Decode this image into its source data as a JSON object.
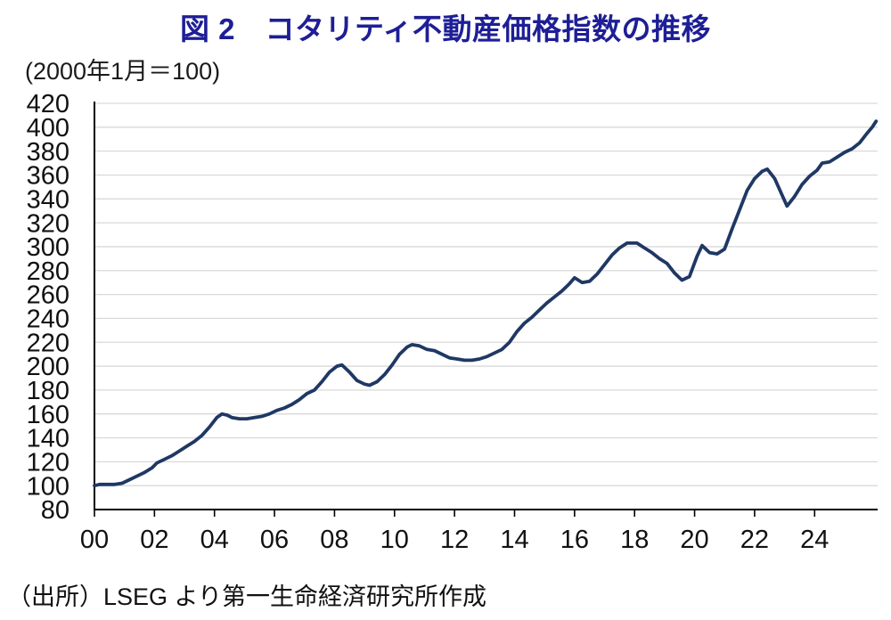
{
  "title": "図 2　コタリティ不動産価格指数の推移",
  "subtitle": "(2000年1月＝100)",
  "source": "（出所）LSEG より第一生命経済研究所作成",
  "colors": {
    "title_text": "#1e1e96",
    "line": "#1f3864",
    "grid": "#d9d9d9",
    "axis": "#000000",
    "tick_text": "#111111"
  },
  "chart_data": {
    "type": "line",
    "title": "図 2　コタリティ不動産価格指数の推移",
    "base_note": "(2000年1月＝100)",
    "xlabel": "",
    "ylabel": "",
    "ylim": [
      80,
      420
    ],
    "ytick_step": 20,
    "xlim": [
      2000,
      2026.1
    ],
    "grid": true,
    "legend": "none",
    "x_tick_years": [
      2000,
      2002,
      2004,
      2006,
      2008,
      2010,
      2012,
      2014,
      2016,
      2018,
      2020,
      2022,
      2024
    ],
    "x_tick_labels": [
      "00",
      "02",
      "04",
      "06",
      "08",
      "10",
      "12",
      "14",
      "16",
      "18",
      "20",
      "22",
      "24"
    ],
    "series": [
      {
        "color": "#1f3864",
        "points": [
          [
            2000.0,
            100
          ],
          [
            2000.17,
            101
          ],
          [
            2000.42,
            101
          ],
          [
            2000.67,
            101
          ],
          [
            2000.92,
            102
          ],
          [
            2001.17,
            105
          ],
          [
            2001.42,
            108
          ],
          [
            2001.67,
            111
          ],
          [
            2001.92,
            115
          ],
          [
            2002.08,
            119
          ],
          [
            2002.33,
            122
          ],
          [
            2002.58,
            125
          ],
          [
            2002.83,
            129
          ],
          [
            2003.08,
            133
          ],
          [
            2003.33,
            137
          ],
          [
            2003.58,
            142
          ],
          [
            2003.83,
            149
          ],
          [
            2004.08,
            157
          ],
          [
            2004.25,
            160
          ],
          [
            2004.42,
            159
          ],
          [
            2004.58,
            157
          ],
          [
            2004.83,
            156
          ],
          [
            2005.08,
            156
          ],
          [
            2005.33,
            157
          ],
          [
            2005.58,
            158
          ],
          [
            2005.83,
            160
          ],
          [
            2006.08,
            163
          ],
          [
            2006.33,
            165
          ],
          [
            2006.58,
            168
          ],
          [
            2006.83,
            172
          ],
          [
            2007.08,
            177
          ],
          [
            2007.33,
            180
          ],
          [
            2007.58,
            187
          ],
          [
            2007.83,
            195
          ],
          [
            2008.08,
            200
          ],
          [
            2008.25,
            201
          ],
          [
            2008.5,
            195
          ],
          [
            2008.75,
            188
          ],
          [
            2009.0,
            185
          ],
          [
            2009.17,
            184
          ],
          [
            2009.42,
            187
          ],
          [
            2009.67,
            193
          ],
          [
            2009.92,
            201
          ],
          [
            2010.17,
            210
          ],
          [
            2010.42,
            216
          ],
          [
            2010.58,
            218
          ],
          [
            2010.83,
            217
          ],
          [
            2011.08,
            214
          ],
          [
            2011.33,
            213
          ],
          [
            2011.58,
            210
          ],
          [
            2011.83,
            207
          ],
          [
            2012.08,
            206
          ],
          [
            2012.33,
            205
          ],
          [
            2012.58,
            205
          ],
          [
            2012.83,
            206
          ],
          [
            2013.08,
            208
          ],
          [
            2013.33,
            211
          ],
          [
            2013.58,
            214
          ],
          [
            2013.83,
            220
          ],
          [
            2014.08,
            229
          ],
          [
            2014.33,
            236
          ],
          [
            2014.58,
            241
          ],
          [
            2014.83,
            247
          ],
          [
            2015.08,
            253
          ],
          [
            2015.33,
            258
          ],
          [
            2015.58,
            263
          ],
          [
            2015.83,
            269
          ],
          [
            2016.0,
            274
          ],
          [
            2016.25,
            270
          ],
          [
            2016.5,
            271
          ],
          [
            2016.75,
            277
          ],
          [
            2017.0,
            285
          ],
          [
            2017.25,
            293
          ],
          [
            2017.5,
            299
          ],
          [
            2017.75,
            303
          ],
          [
            2018.08,
            303
          ],
          [
            2018.33,
            299
          ],
          [
            2018.58,
            295
          ],
          [
            2018.83,
            290
          ],
          [
            2019.08,
            286
          ],
          [
            2019.33,
            278
          ],
          [
            2019.58,
            272
          ],
          [
            2019.83,
            275
          ],
          [
            2020.08,
            292
          ],
          [
            2020.25,
            301
          ],
          [
            2020.5,
            295
          ],
          [
            2020.75,
            294
          ],
          [
            2021.0,
            298
          ],
          [
            2021.25,
            315
          ],
          [
            2021.5,
            331
          ],
          [
            2021.75,
            347
          ],
          [
            2022.0,
            357
          ],
          [
            2022.25,
            363
          ],
          [
            2022.42,
            365
          ],
          [
            2022.67,
            357
          ],
          [
            2022.83,
            348
          ],
          [
            2023.08,
            334
          ],
          [
            2023.33,
            342
          ],
          [
            2023.58,
            352
          ],
          [
            2023.83,
            359
          ],
          [
            2024.08,
            364
          ],
          [
            2024.25,
            370
          ],
          [
            2024.5,
            371
          ],
          [
            2024.75,
            375
          ],
          [
            2025.0,
            379
          ],
          [
            2025.25,
            382
          ],
          [
            2025.5,
            387
          ],
          [
            2025.75,
            395
          ],
          [
            2025.92,
            400
          ],
          [
            2026.05,
            405
          ]
        ]
      }
    ]
  }
}
